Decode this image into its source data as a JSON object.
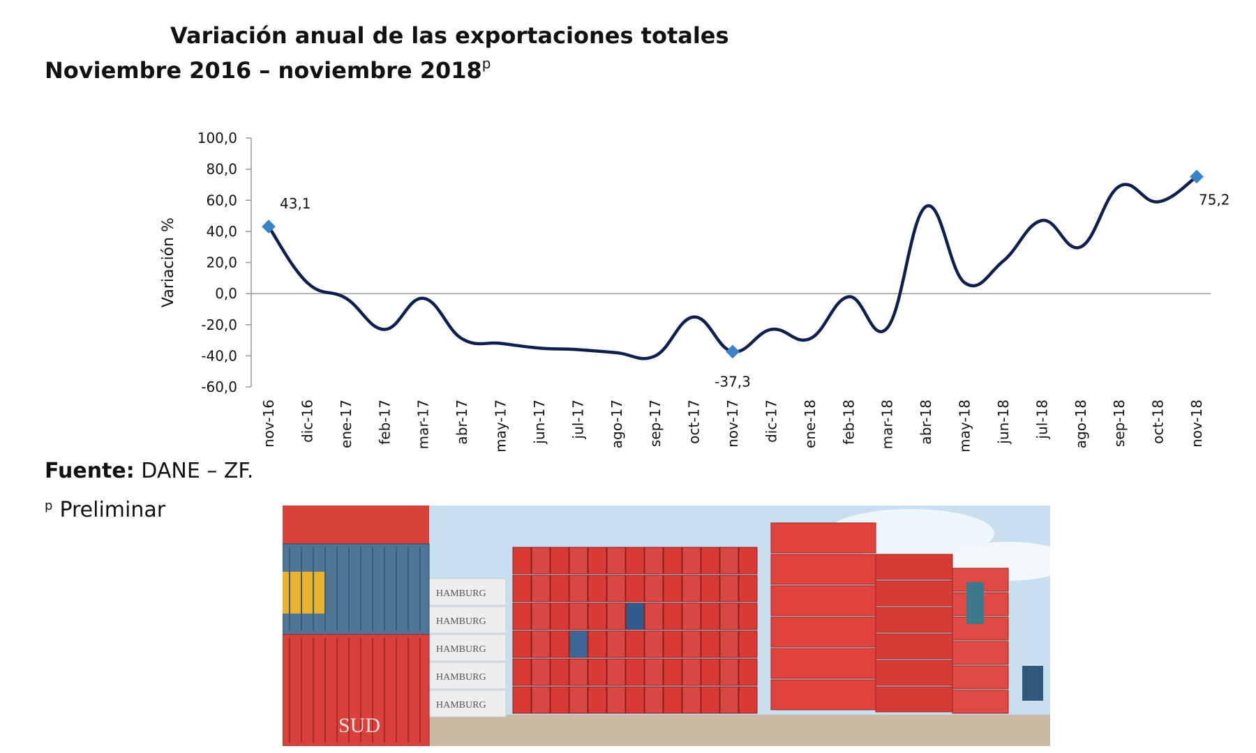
{
  "title": {
    "line1": "Variación anual de las exportaciones totales",
    "line2": "Noviembre 2016 – noviembre 2018",
    "line2_sup": "p"
  },
  "colors": {
    "line": "#0d1f4f",
    "marker": "#3b83c6",
    "axis": "#9a9a9a",
    "text": "#111111"
  },
  "chart_data": {
    "type": "line",
    "categories": [
      "nov-16",
      "dic-16",
      "ene-17",
      "feb-17",
      "mar-17",
      "abr-17",
      "may-17",
      "jun-17",
      "jul-17",
      "ago-17",
      "sep-17",
      "oct-17",
      "nov-17",
      "dic-17",
      "ene-18",
      "feb-18",
      "mar-18",
      "abr-18",
      "may-18",
      "jun-18",
      "jul-18",
      "ago-18",
      "sep-18",
      "oct-18",
      "nov-18"
    ],
    "series": [
      {
        "values": [
          43.1,
          7,
          -3,
          -23,
          -3,
          -29,
          -32,
          -35,
          -36,
          -38,
          -40,
          -15,
          -37.3,
          -23,
          -29,
          -2,
          -22,
          56,
          7,
          21,
          47,
          30,
          69,
          59,
          75.2
        ]
      }
    ],
    "ylabel": "Variación %",
    "xlabel": "",
    "ylim": [
      -60,
      100
    ],
    "yticks": [
      "100,0",
      "80,0",
      "60,0",
      "40,0",
      "20,0",
      "0,0",
      "-20,0",
      "-40,0",
      "-60,0"
    ],
    "ytick_values": [
      100,
      80,
      60,
      40,
      20,
      0,
      -20,
      -40,
      -60
    ],
    "data_labels": [
      {
        "index": 0,
        "text": "43,1"
      },
      {
        "index": 12,
        "text": "-37,3"
      },
      {
        "index": 24,
        "text": "75,2"
      }
    ],
    "marked_points": [
      0,
      12,
      24
    ]
  },
  "footer": {
    "source_label": "Fuente:",
    "source_text": "DANE – ZF.",
    "prelim_sup": "p",
    "prelim_text": "Preliminar"
  },
  "photo": {
    "container_labels": [
      "HAMBURG",
      "HAMBURG",
      "HAMBURG",
      "HAMBURG",
      "HAMBURG",
      "SUD"
    ],
    "sky_color": "#c8dff0",
    "container_color": "#d93a35"
  }
}
